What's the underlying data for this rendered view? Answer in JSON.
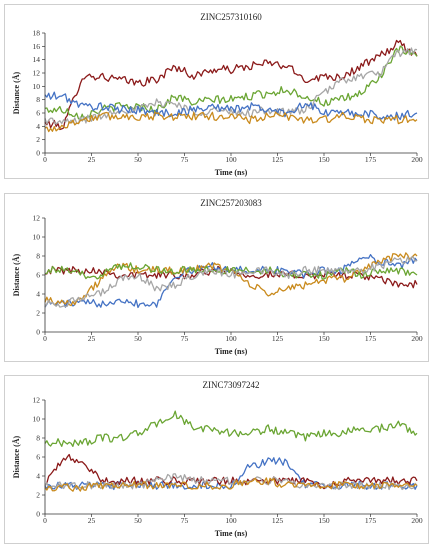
{
  "chart_data": [
    {
      "type": "line",
      "title": "ZINC257310160",
      "xlabel": "Time (ns)",
      "ylabel": "Distance (Å)",
      "xlim": [
        0,
        200
      ],
      "ylim": [
        0,
        18
      ],
      "xticks": [
        0,
        25,
        50,
        75,
        100,
        125,
        150,
        175,
        200
      ],
      "yticks": [
        0,
        2,
        4,
        6,
        8,
        10,
        12,
        14,
        16,
        18
      ],
      "grid": false,
      "x": [
        0,
        10,
        20,
        30,
        40,
        50,
        60,
        70,
        80,
        90,
        100,
        110,
        120,
        130,
        140,
        150,
        160,
        170,
        180,
        190,
        200
      ],
      "series": [
        {
          "color": "#8b1a1a",
          "values": [
            4.5,
            4.0,
            11.5,
            11.5,
            11.0,
            10.5,
            11.0,
            13.0,
            11.5,
            12.5,
            12.5,
            13.0,
            13.5,
            13.0,
            11.0,
            11.5,
            11.5,
            13.0,
            14.5,
            16.5,
            14.5
          ]
        },
        {
          "color": "#6aa533",
          "values": [
            6.5,
            6.5,
            5.5,
            6.5,
            7.0,
            7.0,
            6.5,
            8.5,
            7.5,
            8.0,
            8.0,
            8.5,
            9.0,
            9.5,
            8.5,
            7.5,
            8.0,
            9.0,
            11.5,
            15.5,
            14.5
          ]
        },
        {
          "color": "#a6a6a6",
          "values": [
            5.0,
            4.5,
            5.0,
            5.5,
            6.5,
            6.5,
            7.5,
            7.5,
            6.0,
            6.5,
            6.0,
            6.0,
            6.5,
            6.0,
            6.5,
            9.0,
            11.0,
            11.5,
            12.0,
            15.0,
            15.5
          ]
        },
        {
          "color": "#4472c4",
          "values": [
            8.5,
            8.5,
            7.0,
            7.0,
            6.5,
            6.5,
            6.0,
            6.0,
            6.5,
            7.0,
            6.5,
            7.0,
            6.5,
            6.0,
            7.5,
            6.0,
            6.0,
            6.0,
            5.5,
            5.5,
            6.0
          ]
        },
        {
          "color": "#c98a1c",
          "values": [
            3.5,
            4.0,
            5.0,
            5.5,
            5.5,
            5.5,
            5.5,
            5.5,
            5.5,
            5.5,
            5.5,
            5.0,
            5.5,
            5.5,
            5.0,
            5.0,
            5.5,
            5.0,
            5.0,
            5.0,
            5.0
          ]
        }
      ]
    },
    {
      "type": "line",
      "title": "ZINC257203083",
      "xlabel": "Time (ns)",
      "ylabel": "Distance (Å)",
      "xlim": [
        0,
        200
      ],
      "ylim": [
        0,
        12
      ],
      "xticks": [
        0,
        25,
        50,
        75,
        100,
        125,
        150,
        175,
        200
      ],
      "yticks": [
        0,
        2,
        4,
        6,
        8,
        10,
        12
      ],
      "grid": false,
      "x": [
        0,
        10,
        20,
        30,
        40,
        50,
        60,
        70,
        80,
        90,
        100,
        110,
        120,
        130,
        140,
        150,
        160,
        170,
        180,
        190,
        200
      ],
      "series": [
        {
          "color": "#8b1a1a",
          "values": [
            6.5,
            6.5,
            6.5,
            6.5,
            6.0,
            6.0,
            6.0,
            6.0,
            6.0,
            6.5,
            6.5,
            6.0,
            6.0,
            6.0,
            6.0,
            6.0,
            6.0,
            6.0,
            5.5,
            5.0,
            5.0
          ]
        },
        {
          "color": "#4472c4",
          "values": [
            3.0,
            3.0,
            3.0,
            3.0,
            3.5,
            3.0,
            3.0,
            6.0,
            6.5,
            7.0,
            6.5,
            6.5,
            6.5,
            6.5,
            6.0,
            6.5,
            6.5,
            8.0,
            7.5,
            7.0,
            7.5
          ]
        },
        {
          "color": "#c98a1c",
          "values": [
            3.5,
            3.0,
            3.5,
            5.5,
            7.0,
            6.5,
            6.5,
            6.5,
            6.5,
            7.0,
            6.5,
            5.0,
            4.0,
            4.5,
            5.0,
            5.5,
            5.5,
            6.5,
            7.5,
            8.0,
            8.0
          ]
        },
        {
          "color": "#6aa533",
          "values": [
            6.5,
            6.5,
            6.0,
            6.0,
            7.0,
            7.0,
            6.5,
            6.5,
            6.5,
            6.5,
            6.5,
            6.5,
            6.5,
            6.0,
            6.0,
            6.0,
            6.5,
            6.0,
            6.5,
            6.5,
            6.0
          ]
        },
        {
          "color": "#a6a6a6",
          "values": [
            3.0,
            3.0,
            3.5,
            4.0,
            5.5,
            6.0,
            4.5,
            5.0,
            6.0,
            6.5,
            6.0,
            6.5,
            6.5,
            6.0,
            6.5,
            6.5,
            6.5,
            6.5,
            7.0,
            7.5,
            7.5
          ]
        }
      ]
    },
    {
      "type": "line",
      "title": "ZINC73097242",
      "xlabel": "Time (ns)",
      "ylabel": "Distance (Å)",
      "xlim": [
        0,
        200
      ],
      "ylim": [
        0,
        12
      ],
      "xticks": [
        0,
        25,
        50,
        75,
        100,
        125,
        150,
        175,
        200
      ],
      "yticks": [
        0,
        2,
        4,
        6,
        8,
        10,
        12
      ],
      "grid": false,
      "x": [
        0,
        10,
        20,
        30,
        40,
        50,
        60,
        70,
        80,
        90,
        100,
        110,
        120,
        130,
        140,
        150,
        160,
        170,
        180,
        190,
        200
      ],
      "series": [
        {
          "color": "#6aa533",
          "values": [
            7.5,
            7.5,
            7.5,
            8.0,
            8.0,
            8.5,
            9.5,
            10.5,
            9.0,
            9.0,
            8.5,
            8.5,
            9.0,
            8.5,
            8.0,
            8.5,
            8.5,
            9.0,
            9.0,
            9.5,
            8.5
          ]
        },
        {
          "color": "#4472c4",
          "values": [
            3.0,
            3.0,
            3.0,
            3.0,
            3.0,
            3.0,
            3.0,
            3.0,
            3.0,
            3.0,
            3.0,
            5.0,
            5.5,
            5.5,
            3.0,
            3.0,
            3.0,
            3.0,
            3.0,
            3.0,
            3.0
          ]
        },
        {
          "color": "#8b1a1a",
          "values": [
            3.0,
            6.0,
            5.5,
            3.5,
            3.5,
            3.5,
            3.5,
            3.5,
            3.5,
            3.5,
            3.5,
            3.5,
            3.5,
            3.5,
            3.5,
            3.0,
            3.5,
            3.5,
            3.5,
            3.5,
            3.5
          ]
        },
        {
          "color": "#a6a6a6",
          "values": [
            3.0,
            3.0,
            3.0,
            3.0,
            3.0,
            3.0,
            3.5,
            4.0,
            3.5,
            3.5,
            3.5,
            3.5,
            3.5,
            3.5,
            3.0,
            3.0,
            3.0,
            3.0,
            3.0,
            3.0,
            3.0
          ]
        },
        {
          "color": "#c98a1c",
          "values": [
            2.8,
            2.8,
            2.8,
            3.0,
            3.0,
            3.0,
            3.0,
            3.0,
            3.0,
            3.0,
            3.0,
            3.5,
            3.5,
            3.0,
            3.0,
            3.0,
            3.0,
            3.0,
            3.0,
            3.0,
            3.0
          ]
        }
      ]
    }
  ]
}
